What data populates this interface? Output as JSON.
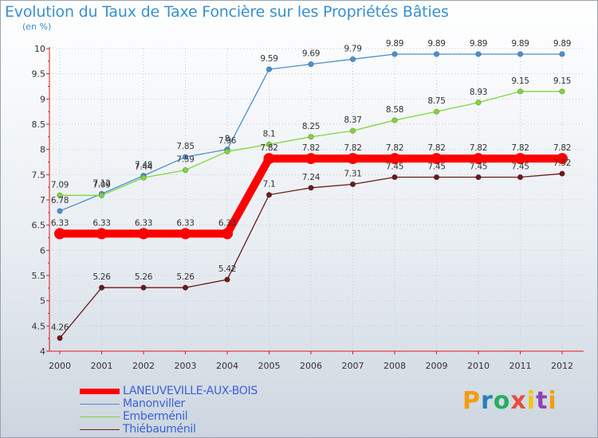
{
  "title": "Evolution du Taux de Taxe Foncière sur les Propriétés Bâties",
  "unit_label": "(en %)",
  "logo": {
    "letters": [
      "P",
      "r",
      "o",
      "x",
      "i",
      "t",
      "i"
    ],
    "colors": [
      "#f39c12",
      "#2980b9",
      "#27ae60",
      "#e74c3c",
      "#f1c40f",
      "#8e44ad",
      "#f39c12"
    ]
  },
  "chart_data": {
    "type": "line",
    "title": "Evolution du Taux de Taxe Foncière sur les Propriétés Bâties",
    "ylabel": "(en %)",
    "xlabel": "",
    "x": [
      "2000",
      "2001",
      "2002",
      "2003",
      "2004",
      "2005",
      "2006",
      "2007",
      "2008",
      "2009",
      "2010",
      "2011",
      "2012"
    ],
    "ylim": [
      4,
      10
    ],
    "yticks": [
      "4",
      "4.5",
      "5",
      "5.5",
      "6",
      "6.5",
      "7",
      "7.5",
      "8",
      "8.5",
      "9",
      "9.5",
      "10"
    ],
    "series": [
      {
        "name": "LANEUVEVILLE-AUX-BOIS",
        "color": "#ff0000",
        "labels": [
          "6.33",
          "6.33",
          "6.33",
          "6.33",
          "6.33",
          "7.82",
          "7.82",
          "7.82",
          "7.82",
          "7.82",
          "7.82",
          "7.82",
          "7.82"
        ],
        "values": [
          6.33,
          6.33,
          6.33,
          6.33,
          6.33,
          7.82,
          7.82,
          7.82,
          7.82,
          7.82,
          7.82,
          7.82,
          7.82
        ]
      },
      {
        "name": "Manonviller",
        "color": "#4a8fd0",
        "labels": [
          "6.78",
          "7.12",
          "7.48",
          "7.85",
          "8",
          "9.59",
          "9.69",
          "9.79",
          "9.89",
          "9.89",
          "9.89",
          "9.89",
          "9.89"
        ],
        "values": [
          6.78,
          7.12,
          7.48,
          7.85,
          8,
          9.59,
          9.69,
          9.79,
          9.89,
          9.89,
          9.89,
          9.89,
          9.89
        ]
      },
      {
        "name": "Emberménil",
        "color": "#7fd63a",
        "labels": [
          "7.09",
          "7.09",
          "7.44",
          "7.59",
          "7.96",
          "8.1",
          "8.25",
          "8.37",
          "8.58",
          "8.75",
          "8.93",
          "9.15",
          "9.15"
        ],
        "values": [
          7.09,
          7.09,
          7.44,
          7.59,
          7.96,
          8.1,
          8.25,
          8.37,
          8.58,
          8.75,
          8.93,
          9.15,
          9.15
        ]
      },
      {
        "name": "Thiébauménil",
        "color": "#6b1a1a",
        "labels": [
          "4.26",
          "5.26",
          "5.26",
          "5.26",
          "5.42",
          "7.1",
          "7.24",
          "7.31",
          "7.45",
          "7.45",
          "7.45",
          "7.45",
          "7.52"
        ],
        "values": [
          4.26,
          5.26,
          5.26,
          5.26,
          5.42,
          7.1,
          7.24,
          7.31,
          7.45,
          7.45,
          7.45,
          7.45,
          7.52
        ]
      }
    ]
  }
}
